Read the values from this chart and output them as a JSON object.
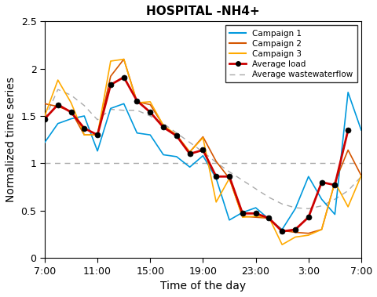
{
  "title": "HOSPITAL -NH4+",
  "xlabel": "Time of the day",
  "ylabel": "Normalized time series",
  "xlim": [
    0,
    24
  ],
  "ylim": [
    0,
    2.5
  ],
  "yticks": [
    0,
    0.5,
    1,
    1.5,
    2,
    2.5
  ],
  "xtick_labels": [
    "7:00",
    "11:00",
    "15:00",
    "19:00",
    "23:00",
    "3:00",
    "7:00"
  ],
  "xtick_positions": [
    0,
    4,
    8,
    12,
    16,
    20,
    24
  ],
  "campaign1_color": "#0099DD",
  "campaign2_color": "#D45500",
  "campaign3_color": "#FFAA00",
  "avg_load_color": "#CC0000",
  "avg_ww_color": "#AAAAAA",
  "campaign1": [
    1.22,
    1.42,
    1.47,
    1.5,
    1.13,
    1.58,
    1.63,
    1.32,
    1.3,
    1.09,
    1.07,
    0.96,
    1.08,
    0.84,
    0.4,
    0.48,
    0.53,
    0.41,
    0.3,
    0.52,
    0.86,
    0.62,
    0.46,
    1.75,
    1.35
  ],
  "campaign2": [
    1.63,
    1.6,
    1.55,
    1.3,
    1.3,
    1.92,
    2.1,
    1.65,
    1.62,
    1.4,
    1.29,
    1.12,
    1.28,
    1.02,
    0.84,
    0.44,
    0.43,
    0.42,
    0.29,
    0.27,
    0.26,
    0.3,
    0.8,
    1.14,
    0.87
  ],
  "campaign3": [
    1.5,
    1.88,
    1.64,
    1.3,
    1.3,
    2.08,
    2.1,
    1.64,
    1.65,
    1.4,
    1.3,
    1.12,
    1.27,
    0.59,
    0.84,
    0.43,
    0.44,
    0.43,
    0.14,
    0.22,
    0.24,
    0.3,
    0.8,
    0.54,
    0.87
  ],
  "avg_load": [
    1.47,
    1.62,
    1.54,
    1.37,
    1.3,
    1.83,
    1.91,
    1.66,
    1.54,
    1.38,
    1.29,
    1.1,
    1.14,
    0.86,
    0.86,
    0.47,
    0.47,
    0.42,
    0.28,
    0.3,
    0.43,
    0.8,
    0.77,
    1.35
  ],
  "avg_ww": [
    1.47,
    1.78,
    1.72,
    1.61,
    1.46,
    1.57,
    1.56,
    1.56,
    1.5,
    1.42,
    1.32,
    1.22,
    1.12,
    1.01,
    0.91,
    0.82,
    0.73,
    0.64,
    0.57,
    0.53,
    0.52,
    0.55,
    0.62,
    0.71,
    0.86
  ],
  "avg_load_x": [
    0,
    1,
    2,
    3,
    4,
    5,
    6,
    7,
    8,
    9,
    10,
    11,
    12,
    13,
    14,
    15,
    16,
    17,
    18,
    19,
    20,
    21,
    22,
    23
  ],
  "campaign_x": [
    0,
    1,
    2,
    3,
    4,
    5,
    6,
    7,
    8,
    9,
    10,
    11,
    12,
    13,
    14,
    15,
    16,
    17,
    18,
    19,
    20,
    21,
    22,
    23,
    24
  ],
  "avg_ww_x": [
    0,
    1,
    2,
    3,
    4,
    5,
    6,
    7,
    8,
    9,
    10,
    11,
    12,
    13,
    14,
    15,
    16,
    17,
    18,
    19,
    20,
    21,
    22,
    23,
    24
  ]
}
